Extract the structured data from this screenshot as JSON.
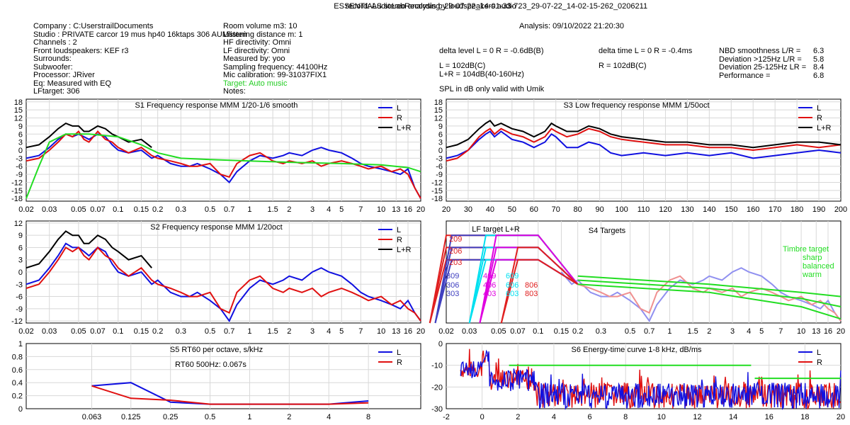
{
  "header": {
    "title": "ESSENTIALS stereo analysis by loudspeakers.audio",
    "record": "record: AudioLabRecording_29-07-22_14-01-33-723_29-07-22_14-02-15-262_0206211",
    "analysis": "Analysis: 09/10/2022 21:20:30"
  },
  "info_left": [
    "Company : C:UserstrailDocuments",
    "Studio : PRIVATE carcor 19 mus hp40 16ktaps 306 AUMlisten",
    "Channels : 2",
    "Front loudspeakers: KEF r3",
    "Surrounds:",
    "Subwoofer:",
    "Processor: JRiver",
    "Eq: Measured with EQ",
    "LFtarget: 306"
  ],
  "info_mid": [
    "Room volume m3: 10",
    "Listening distance m: 1",
    "HF directivity: Omni",
    "LF directivity: Omni",
    "Measured by: yoo",
    "Sampling frequency: 44100Hz",
    "Mic calibration: 99-31037FIX1",
    "Target: Auto music",
    "Notes:"
  ],
  "levels": {
    "delta_level": "delta level L = 0  R = -0.6dB(B)",
    "l_spl": "L =      102dB(C)",
    "lr_spl": "L+R = 104dB(40-160Hz)",
    "umik_note": "SPL in dB only valid with Umik",
    "delta_time": "delta time  L = 0  R = -0.4ms",
    "r_spl": "R =      102dB(C)"
  },
  "metrics": [
    {
      "label": "NBD smoothness L/R =",
      "value": "6.3"
    },
    {
      "label": "Deviation >125Hz L/R =",
      "value": "5.8"
    },
    {
      "label": "Deviation 25-125Hz LR =",
      "value": "8.4"
    },
    {
      "label": "Performance =",
      "value": "6.8"
    }
  ],
  "colors": {
    "L": "#1010e0",
    "R": "#e01010",
    "LR": "#000000",
    "target": "#22dd22",
    "grid": "#d8d8d8",
    "lf_cyan": "#00e0f0",
    "lf_magenta": "#e000e0"
  },
  "chart_data": [
    {
      "id": "S1",
      "type": "line",
      "title": "S1  Frequency response MMM 1/20-1/6 smooth",
      "x_scale": "log",
      "x_ticks": [
        "0.02",
        "0.03",
        "0.05",
        "0.07",
        "0.1",
        "0.15",
        "0.2",
        "0.3",
        "0.5",
        "0.7",
        "1",
        "1.5",
        "2",
        "3",
        "4",
        "5",
        "7",
        "10",
        "13",
        "16",
        "20"
      ],
      "x_unit": "kHz",
      "xlim": [
        0.02,
        20
      ],
      "y_ticks": [
        "18",
        "15",
        "12",
        "9",
        "6",
        "3",
        "0",
        "-3",
        "-6",
        "-9",
        "-12",
        "-15",
        "-18"
      ],
      "ylim": [
        -19,
        19
      ],
      "legend": [
        "L",
        "R",
        "L+R"
      ],
      "series": [
        {
          "name": "L",
          "x": [
            0.02,
            0.025,
            0.03,
            0.035,
            0.04,
            0.045,
            0.05,
            0.055,
            0.06,
            0.07,
            0.08,
            0.09,
            0.1,
            0.12,
            0.15,
            0.18,
            0.2,
            0.25,
            0.3,
            0.35,
            0.4,
            0.5,
            0.6,
            0.7,
            0.8,
            1,
            1.2,
            1.5,
            1.8,
            2,
            2.5,
            3,
            3.5,
            4,
            5,
            6,
            7,
            8,
            10,
            12,
            14,
            16,
            18,
            20
          ],
          "y": [
            -3,
            -2,
            1,
            4,
            6,
            5,
            6,
            5,
            4,
            6,
            5,
            2,
            0,
            -1,
            0,
            -3,
            -2,
            -5,
            -6,
            -6,
            -5,
            -7,
            -9,
            -12,
            -8,
            -4,
            -2,
            -3,
            -2,
            -1,
            -2,
            0,
            1,
            0,
            -1,
            -3,
            -5,
            -6,
            -7,
            -8,
            -9,
            -7,
            -14,
            -18
          ]
        },
        {
          "name": "R",
          "x": [
            0.02,
            0.025,
            0.03,
            0.035,
            0.04,
            0.045,
            0.05,
            0.055,
            0.06,
            0.07,
            0.08,
            0.09,
            0.1,
            0.12,
            0.15,
            0.18,
            0.2,
            0.25,
            0.3,
            0.35,
            0.4,
            0.5,
            0.6,
            0.7,
            0.8,
            1,
            1.2,
            1.5,
            1.8,
            2,
            2.5,
            3,
            3.5,
            4,
            5,
            6,
            7,
            8,
            10,
            12,
            14,
            16,
            18,
            20
          ],
          "y": [
            -4,
            -3,
            0,
            3,
            6,
            5,
            7,
            4,
            3,
            7,
            4,
            3,
            1,
            -1,
            1,
            -2,
            -3,
            -4,
            -5,
            -6,
            -6,
            -5,
            -9,
            -10,
            -5,
            -2,
            -1,
            -4,
            -5,
            -4,
            -5,
            -4,
            -6,
            -5,
            -4,
            -5,
            -6,
            -7,
            -6,
            -8,
            -7,
            -9,
            -14,
            -18
          ]
        },
        {
          "name": "L+R",
          "x": [
            0.02,
            0.025,
            0.03,
            0.035,
            0.04,
            0.045,
            0.05,
            0.055,
            0.06,
            0.07,
            0.08,
            0.09,
            0.1,
            0.12,
            0.15,
            0.18
          ],
          "y": [
            1,
            2,
            5,
            8,
            10,
            9,
            9,
            7,
            7,
            9,
            8,
            6,
            5,
            3,
            4,
            1
          ]
        },
        {
          "name": "target",
          "x": [
            0.02,
            0.025,
            0.03,
            0.04,
            0.06,
            0.1,
            0.15,
            0.2,
            0.3,
            0.5,
            1,
            2,
            5,
            10,
            16,
            20
          ],
          "y": [
            -18,
            -6,
            3,
            6,
            6,
            5,
            2,
            -1,
            -3,
            -3.5,
            -4,
            -4.5,
            -5,
            -5.5,
            -6.5,
            -8
          ]
        }
      ]
    },
    {
      "id": "S3",
      "type": "line",
      "title": "S3  Low frequency response MMM 1/50oct",
      "x_scale": "linear",
      "x_ticks": [
        "20",
        "30",
        "40",
        "50",
        "60",
        "70",
        "80",
        "90",
        "100",
        "110",
        "120",
        "130",
        "140",
        "150",
        "160",
        "170",
        "180",
        "190",
        "200"
      ],
      "x_unit": "Hz",
      "xlim": [
        20,
        200
      ],
      "y_ticks": [
        "18",
        "15",
        "12",
        "9",
        "6",
        "3",
        "0",
        "-3",
        "-6",
        "-9",
        "-12",
        "-15",
        "-18"
      ],
      "ylim": [
        -19,
        19
      ],
      "legend": [
        "L",
        "R",
        "L+R"
      ],
      "series": [
        {
          "name": "L",
          "x": [
            20,
            25,
            30,
            35,
            38,
            40,
            42,
            45,
            50,
            55,
            60,
            65,
            68,
            70,
            75,
            80,
            85,
            90,
            95,
            100,
            110,
            120,
            130,
            140,
            150,
            160,
            170,
            180,
            190,
            200
          ],
          "y": [
            -3,
            -2,
            0,
            4,
            6,
            7,
            5,
            7,
            4,
            3,
            1,
            3,
            6,
            5,
            1,
            1,
            3,
            2,
            -1,
            -2,
            -1,
            -2,
            -1,
            -2,
            -1,
            -3,
            -2,
            -1,
            0,
            -1
          ]
        },
        {
          "name": "R",
          "x": [
            20,
            25,
            30,
            35,
            38,
            40,
            42,
            45,
            50,
            55,
            60,
            65,
            68,
            70,
            75,
            80,
            85,
            90,
            95,
            100,
            110,
            120,
            130,
            140,
            150,
            160,
            170,
            180,
            190,
            200
          ],
          "y": [
            -4,
            -3,
            0,
            5,
            7,
            8,
            6,
            8,
            6,
            5,
            3,
            5,
            8,
            7,
            5,
            6,
            8,
            7,
            5,
            4,
            3,
            2,
            2,
            1,
            1,
            0,
            1,
            2,
            1,
            2
          ]
        },
        {
          "name": "L+R",
          "x": [
            20,
            25,
            30,
            35,
            38,
            40,
            42,
            45,
            50,
            55,
            60,
            65,
            68,
            70,
            75,
            80,
            85,
            90,
            95,
            100,
            110,
            120,
            130,
            140,
            150,
            160,
            170,
            180,
            190,
            200
          ],
          "y": [
            1,
            2,
            4,
            8,
            10,
            11,
            9,
            10,
            8,
            7,
            5,
            7,
            10,
            9,
            7,
            7,
            9,
            8,
            6,
            5,
            4,
            3,
            3,
            2,
            2,
            1,
            2,
            3,
            3,
            2
          ]
        }
      ]
    },
    {
      "id": "S2",
      "type": "line",
      "title": "S2  Frequency response MMM 1/20oct",
      "x_scale": "log",
      "x_ticks": [
        "0.02",
        "0.03",
        "0.05",
        "0.07",
        "0.1",
        "0.15",
        "0.2",
        "0.3",
        "0.5",
        "0.7",
        "1",
        "1.5",
        "2",
        "3",
        "4",
        "5",
        "7",
        "10",
        "13",
        "16",
        "20"
      ],
      "x_unit": "kHz",
      "xlim": [
        0.02,
        20
      ],
      "y_ticks": [
        "12",
        "9",
        "6",
        "3",
        "0",
        "-3",
        "-6",
        "-9",
        "-12"
      ],
      "ylim": [
        -12.5,
        12.5
      ],
      "legend": [
        "L",
        "R",
        "L+R"
      ],
      "series": [
        {
          "name": "L",
          "x": [
            0.02,
            0.025,
            0.03,
            0.035,
            0.04,
            0.045,
            0.05,
            0.055,
            0.06,
            0.07,
            0.08,
            0.09,
            0.1,
            0.12,
            0.15,
            0.18,
            0.2,
            0.25,
            0.3,
            0.35,
            0.4,
            0.5,
            0.6,
            0.7,
            0.8,
            1,
            1.2,
            1.5,
            1.8,
            2,
            2.5,
            3,
            3.5,
            4,
            5,
            6,
            7,
            8,
            10,
            12,
            14,
            16,
            18,
            20
          ],
          "y": [
            -3,
            -2,
            1,
            4,
            7,
            6,
            6,
            5,
            4,
            6,
            5,
            2,
            0,
            -1,
            0,
            -3,
            -2,
            -5,
            -6,
            -6,
            -5,
            -7,
            -9,
            -12,
            -8,
            -4,
            -2,
            -3,
            -2,
            -1,
            -2,
            0,
            1,
            0,
            -1,
            -3,
            -5,
            -6,
            -7,
            -8,
            -9,
            -7,
            -10,
            -12
          ]
        },
        {
          "name": "R",
          "x": [
            0.02,
            0.025,
            0.03,
            0.035,
            0.04,
            0.045,
            0.05,
            0.055,
            0.06,
            0.07,
            0.08,
            0.09,
            0.1,
            0.12,
            0.15,
            0.18,
            0.2,
            0.25,
            0.3,
            0.35,
            0.4,
            0.5,
            0.6,
            0.7,
            0.8,
            1,
            1.2,
            1.5,
            1.8,
            2,
            2.5,
            3,
            3.5,
            4,
            5,
            6,
            7,
            8,
            10,
            12,
            14,
            16,
            18,
            20
          ],
          "y": [
            -4,
            -3,
            0,
            3,
            6,
            5,
            6,
            4,
            3,
            6,
            4,
            3,
            1,
            -1,
            1,
            -2,
            -3,
            -4,
            -5,
            -6,
            -6,
            -5,
            -9,
            -10,
            -5,
            -2,
            -1,
            -4,
            -5,
            -4,
            -5,
            -4,
            -6,
            -5,
            -4,
            -5,
            -6,
            -7,
            -6,
            -8,
            -7,
            -9,
            -10,
            -12
          ]
        },
        {
          "name": "L+R",
          "x": [
            0.02,
            0.025,
            0.03,
            0.035,
            0.04,
            0.045,
            0.05,
            0.055,
            0.06,
            0.07,
            0.08,
            0.09,
            0.1,
            0.12,
            0.15,
            0.18
          ],
          "y": [
            1,
            2,
            5,
            8,
            10,
            9,
            9,
            7,
            7,
            9,
            8,
            6,
            5,
            3,
            4,
            1
          ]
        }
      ]
    },
    {
      "id": "S4",
      "type": "line",
      "title": "S4 Targets",
      "x_scale": "log",
      "x_ticks": [
        "0.02",
        "0.03",
        "0.05",
        "0.07",
        "0.1",
        "0.15",
        "0.2",
        "0.3",
        "0.5",
        "0.7",
        "1",
        "1.5",
        "2",
        "3",
        "4",
        "5",
        "7",
        "10",
        "13",
        "16",
        "20"
      ],
      "x_unit": "kHz",
      "xlim": [
        0.02,
        20
      ],
      "ylim": [
        -12.5,
        12.5
      ],
      "lf_title": "LF target L+R",
      "timbre_labels": [
        "Timbre target",
        "sharp",
        "balanced",
        "warm"
      ],
      "lf_target_labels": [
        "209",
        "206",
        "203",
        "309",
        "306",
        "303",
        "409",
        "406",
        "403",
        "609",
        "606",
        "603",
        "806",
        "803"
      ]
    },
    {
      "id": "S5",
      "type": "line",
      "title": "S5  RT60 per octave, s/kHz",
      "annotation": "RT60 500Hz: 0.067s",
      "x_scale": "log",
      "x_ticks": [
        "0.063",
        "0.125",
        "0.25",
        "0.5",
        "1",
        "2",
        "4",
        "8"
      ],
      "x_unit": "kHz",
      "xlim": [
        0.02,
        20
      ],
      "y_ticks": [
        "1",
        "0.8",
        "0.6",
        "0.4",
        "0.2",
        "0"
      ],
      "ylim": [
        0,
        1
      ],
      "legend": [
        "L",
        "R"
      ],
      "series": [
        {
          "name": "L",
          "x": [
            0.063,
            0.125,
            0.25,
            0.5,
            1,
            2,
            4,
            8
          ],
          "y": [
            0.35,
            0.4,
            0.1,
            0.07,
            0.07,
            0.07,
            0.07,
            0.12
          ]
        },
        {
          "name": "R",
          "x": [
            0.063,
            0.125,
            0.25,
            0.5,
            1,
            2,
            4,
            8
          ],
          "y": [
            0.35,
            0.16,
            0.13,
            0.07,
            0.07,
            0.07,
            0.07,
            0.09
          ]
        }
      ]
    },
    {
      "id": "S6",
      "type": "line",
      "title": "S6  Energy-time curve 1-8 kHz, dB/ms",
      "x_scale": "linear",
      "x_ticks": [
        "-2",
        "0",
        "2",
        "4",
        "6",
        "8",
        "10",
        "12",
        "14",
        "16",
        "18",
        "20"
      ],
      "x_unit": "ms",
      "xlim": [
        -2,
        20
      ],
      "y_ticks": [
        "0",
        "-10",
        "-20",
        "-30"
      ],
      "ylim": [
        -30,
        0
      ],
      "legend": [
        "L",
        "R"
      ],
      "series": [
        {
          "name": "target",
          "x": [
            1.5,
            15
          ],
          "y": [
            -10,
            -10
          ]
        },
        {
          "name": "target_late",
          "x": [
            15.2,
            20
          ],
          "y": [
            -16,
            -16
          ]
        }
      ]
    }
  ]
}
